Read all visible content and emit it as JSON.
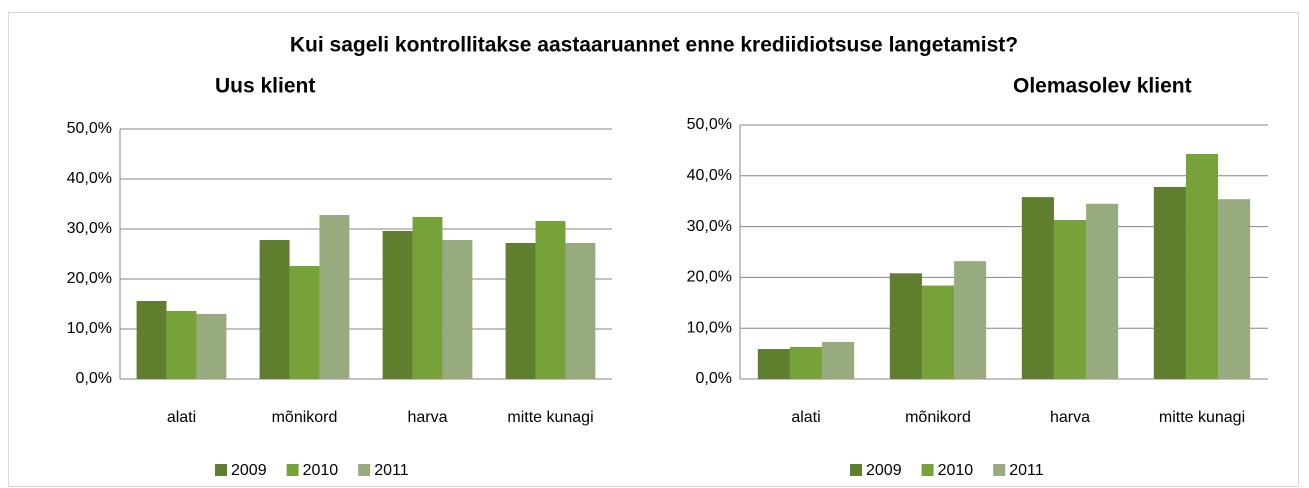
{
  "title": "Kui sageli kontrollitakse aastaaruannet enne krediidiotsuse langetamist?",
  "chart_data": [
    {
      "type": "bar",
      "title": "Uus klient",
      "categories": [
        "alati",
        "mõnikord",
        "harva",
        "mitte kunagi"
      ],
      "series": [
        {
          "name": "2009",
          "color": "#5f7f2f",
          "values": [
            15.6,
            27.8,
            29.6,
            27.2
          ]
        },
        {
          "name": "2010",
          "color": "#77a23a",
          "values": [
            13.6,
            22.6,
            32.4,
            31.6
          ]
        },
        {
          "name": "2011",
          "color": "#98ab7e",
          "values": [
            13.0,
            32.8,
            27.8,
            27.2
          ]
        }
      ],
      "ylim": [
        0,
        50
      ],
      "yticks": [
        {
          "value": 0,
          "label": "0,0%"
        },
        {
          "value": 10,
          "label": "10,0%"
        },
        {
          "value": 20,
          "label": "20,0%"
        },
        {
          "value": 30,
          "label": "30,0%"
        },
        {
          "value": 40,
          "label": "40,0%"
        },
        {
          "value": 50,
          "label": "50,0%"
        }
      ],
      "grid": true,
      "legend": "bottom"
    },
    {
      "type": "bar",
      "title": "Olemasolev klient",
      "categories": [
        "alati",
        "mõnikord",
        "harva",
        "mitte kunagi"
      ],
      "series": [
        {
          "name": "2009",
          "color": "#5f7f2f",
          "values": [
            5.9,
            20.8,
            35.8,
            37.8
          ]
        },
        {
          "name": "2010",
          "color": "#77a23a",
          "values": [
            6.3,
            18.4,
            31.3,
            44.3
          ]
        },
        {
          "name": "2011",
          "color": "#98ab7e",
          "values": [
            7.3,
            23.2,
            34.5,
            35.4
          ]
        }
      ],
      "ylim": [
        0,
        50
      ],
      "yticks": [
        {
          "value": 0,
          "label": "0,0%"
        },
        {
          "value": 10,
          "label": "10,0%"
        },
        {
          "value": 20,
          "label": "20,0%"
        },
        {
          "value": 30,
          "label": "30,0%"
        },
        {
          "value": 40,
          "label": "40,0%"
        },
        {
          "value": 50,
          "label": "50,0%"
        }
      ],
      "grid": true,
      "legend": "bottom"
    }
  ]
}
